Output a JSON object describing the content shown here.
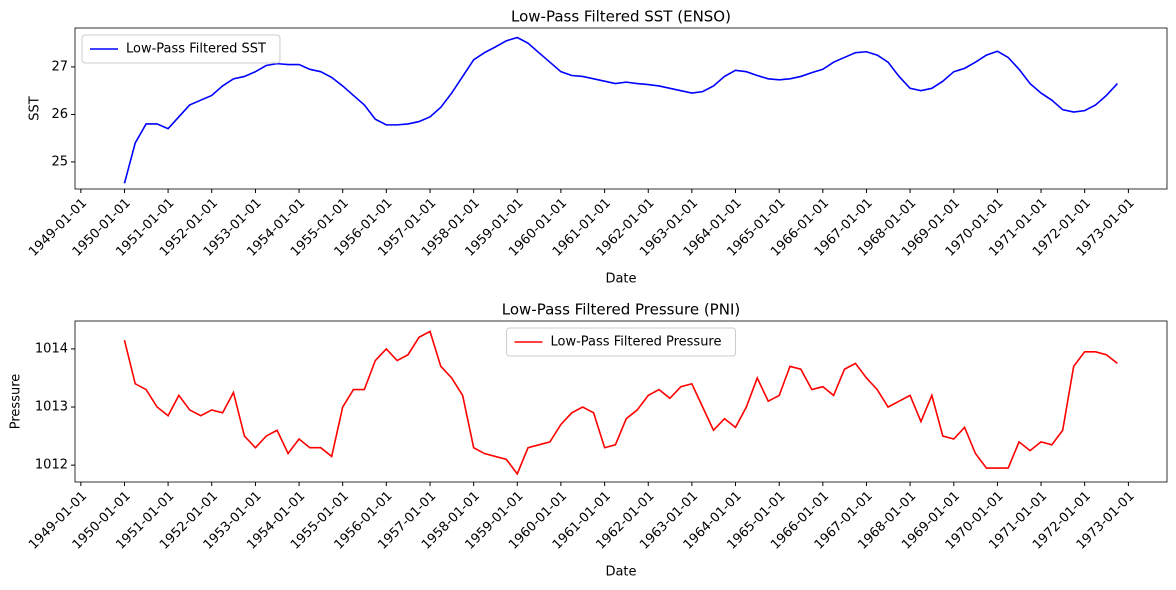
{
  "chart_data": [
    {
      "type": "line",
      "title": "Low-Pass Filtered SST (ENSO)",
      "x_label": "Date",
      "y_label": "SST",
      "x": [
        "1950-01-01",
        "1950-04-01",
        "1950-07-01",
        "1950-10-01",
        "1951-01-01",
        "1951-04-01",
        "1951-07-01",
        "1951-10-01",
        "1952-01-01",
        "1952-04-01",
        "1952-07-01",
        "1952-10-01",
        "1953-01-01",
        "1953-04-01",
        "1953-07-01",
        "1953-10-01",
        "1954-01-01",
        "1954-04-01",
        "1954-07-01",
        "1954-10-01",
        "1955-01-01",
        "1955-04-01",
        "1955-07-01",
        "1955-10-01",
        "1956-01-01",
        "1956-04-01",
        "1956-07-01",
        "1956-10-01",
        "1957-01-01",
        "1957-04-01",
        "1957-07-01",
        "1957-10-01",
        "1958-01-01",
        "1958-04-01",
        "1958-07-01",
        "1958-10-01",
        "1959-01-01",
        "1959-04-01",
        "1959-07-01",
        "1959-10-01",
        "1960-01-01",
        "1960-04-01",
        "1960-07-01",
        "1960-10-01",
        "1961-01-01",
        "1961-04-01",
        "1961-07-01",
        "1961-10-01",
        "1962-01-01",
        "1962-04-01",
        "1962-07-01",
        "1962-10-01",
        "1963-01-01",
        "1963-04-01",
        "1963-07-01",
        "1963-10-01",
        "1964-01-01",
        "1964-04-01",
        "1964-07-01",
        "1964-10-01",
        "1965-01-01",
        "1965-04-01",
        "1965-07-01",
        "1965-10-01",
        "1966-01-01",
        "1966-04-01",
        "1966-07-01",
        "1966-10-01",
        "1967-01-01",
        "1967-04-01",
        "1967-07-01",
        "1967-10-01",
        "1968-01-01",
        "1968-04-01",
        "1968-07-01",
        "1968-10-01",
        "1969-01-01",
        "1969-04-01",
        "1969-07-01",
        "1969-10-01",
        "1970-01-01",
        "1970-04-01",
        "1970-07-01",
        "1970-10-01",
        "1971-01-01",
        "1971-04-01",
        "1971-07-01",
        "1971-10-01",
        "1972-01-01",
        "1972-04-01",
        "1972-07-01",
        "1972-10-01"
      ],
      "series": [
        {
          "name": "Low-Pass Filtered SST",
          "color": "#0000ff",
          "values": [
            24.55,
            25.4,
            25.8,
            25.8,
            25.7,
            25.95,
            26.2,
            26.3,
            26.4,
            26.6,
            26.75,
            26.8,
            26.9,
            27.03,
            27.07,
            27.05,
            27.05,
            26.95,
            26.9,
            26.78,
            26.6,
            26.4,
            26.2,
            25.9,
            25.78,
            25.78,
            25.8,
            25.85,
            25.95,
            26.15,
            26.45,
            26.8,
            27.15,
            27.3,
            27.42,
            27.55,
            27.62,
            27.5,
            27.3,
            27.1,
            26.9,
            26.82,
            26.8,
            26.75,
            26.7,
            26.65,
            26.68,
            26.65,
            26.63,
            26.6,
            26.55,
            26.5,
            26.45,
            26.48,
            26.6,
            26.8,
            26.93,
            26.9,
            26.82,
            26.75,
            26.73,
            26.75,
            26.8,
            26.88,
            26.95,
            27.1,
            27.2,
            27.3,
            27.32,
            27.25,
            27.1,
            26.8,
            26.55,
            26.5,
            26.55,
            26.7,
            26.9,
            26.97,
            27.1,
            27.25,
            27.33,
            27.2,
            26.95,
            26.65,
            26.45,
            26.3,
            26.1,
            26.05,
            26.08,
            26.2,
            26.4,
            26.65
          ]
        }
      ],
      "xlim": [
        "1948-11-13",
        "1973-11-20"
      ],
      "xticks": [
        "1949-01-01",
        "1950-01-01",
        "1951-01-01",
        "1952-01-01",
        "1953-01-01",
        "1954-01-01",
        "1955-01-01",
        "1956-01-01",
        "1957-01-01",
        "1958-01-01",
        "1959-01-01",
        "1960-01-01",
        "1961-01-01",
        "1962-01-01",
        "1963-01-01",
        "1964-01-01",
        "1965-01-01",
        "1966-01-01",
        "1967-01-01",
        "1968-01-01",
        "1969-01-01",
        "1970-01-01",
        "1971-01-01",
        "1972-01-01",
        "1973-01-01"
      ],
      "ylim": [
        24.43,
        27.82
      ],
      "yticks": [
        25,
        26,
        27
      ],
      "legend": "upper left"
    },
    {
      "type": "line",
      "title": "Low-Pass Filtered Pressure (PNI)",
      "x_label": "Date",
      "y_label": "Pressure",
      "x": [
        "1950-01-01",
        "1950-04-01",
        "1950-07-01",
        "1950-10-01",
        "1951-01-01",
        "1951-04-01",
        "1951-07-01",
        "1951-10-01",
        "1952-01-01",
        "1952-04-01",
        "1952-07-01",
        "1952-10-01",
        "1953-01-01",
        "1953-04-01",
        "1953-07-01",
        "1953-10-01",
        "1954-01-01",
        "1954-04-01",
        "1954-07-01",
        "1954-10-01",
        "1955-01-01",
        "1955-04-01",
        "1955-07-01",
        "1955-10-01",
        "1956-01-01",
        "1956-04-01",
        "1956-07-01",
        "1956-10-01",
        "1957-01-01",
        "1957-04-01",
        "1957-07-01",
        "1957-10-01",
        "1958-01-01",
        "1958-04-01",
        "1958-07-01",
        "1958-10-01",
        "1959-01-01",
        "1959-04-01",
        "1959-07-01",
        "1959-10-01",
        "1960-01-01",
        "1960-04-01",
        "1960-07-01",
        "1960-10-01",
        "1961-01-01",
        "1961-04-01",
        "1961-07-01",
        "1961-10-01",
        "1962-01-01",
        "1962-04-01",
        "1962-07-01",
        "1962-10-01",
        "1963-01-01",
        "1963-04-01",
        "1963-07-01",
        "1963-10-01",
        "1964-01-01",
        "1964-04-01",
        "1964-07-01",
        "1964-10-01",
        "1965-01-01",
        "1965-04-01",
        "1965-07-01",
        "1965-10-01",
        "1966-01-01",
        "1966-04-01",
        "1966-07-01",
        "1966-10-01",
        "1967-01-01",
        "1967-04-01",
        "1967-07-01",
        "1967-10-01",
        "1968-01-01",
        "1968-04-01",
        "1968-07-01",
        "1968-10-01",
        "1969-01-01",
        "1969-04-01",
        "1969-07-01",
        "1969-10-01",
        "1970-01-01",
        "1970-04-01",
        "1970-07-01",
        "1970-10-01",
        "1971-01-01",
        "1971-04-01",
        "1971-07-01",
        "1971-10-01",
        "1972-01-01",
        "1972-04-01",
        "1972-07-01",
        "1972-10-01"
      ],
      "series": [
        {
          "name": "Low-Pass Filtered Pressure",
          "color": "#ff0000",
          "values": [
            1014.15,
            1013.4,
            1013.3,
            1013.0,
            1012.85,
            1013.2,
            1012.95,
            1012.85,
            1012.95,
            1012.9,
            1013.25,
            1012.5,
            1012.3,
            1012.5,
            1012.6,
            1012.2,
            1012.45,
            1012.3,
            1012.3,
            1012.15,
            1013.0,
            1013.3,
            1013.3,
            1013.8,
            1014.0,
            1013.8,
            1013.9,
            1014.2,
            1014.3,
            1013.7,
            1013.5,
            1013.2,
            1012.3,
            1012.2,
            1012.15,
            1012.1,
            1011.85,
            1012.3,
            1012.35,
            1012.4,
            1012.7,
            1012.9,
            1013.0,
            1012.9,
            1012.3,
            1012.35,
            1012.8,
            1012.95,
            1013.2,
            1013.3,
            1013.15,
            1013.35,
            1013.4,
            1013.0,
            1012.6,
            1012.8,
            1012.65,
            1013.0,
            1013.5,
            1013.1,
            1013.2,
            1013.7,
            1013.65,
            1013.3,
            1013.35,
            1013.2,
            1013.65,
            1013.75,
            1013.5,
            1013.3,
            1013.0,
            1013.1,
            1013.2,
            1012.75,
            1013.2,
            1012.5,
            1012.45,
            1012.65,
            1012.2,
            1011.95,
            1011.95,
            1011.95,
            1012.4,
            1012.25,
            1012.4,
            1012.35,
            1012.6,
            1013.7,
            1013.95,
            1013.95,
            1013.9,
            1013.75
          ]
        }
      ],
      "xlim": [
        "1948-11-13",
        "1973-11-20"
      ],
      "xticks": [
        "1949-01-01",
        "1950-01-01",
        "1951-01-01",
        "1952-01-01",
        "1953-01-01",
        "1954-01-01",
        "1955-01-01",
        "1956-01-01",
        "1957-01-01",
        "1958-01-01",
        "1959-01-01",
        "1960-01-01",
        "1961-01-01",
        "1962-01-01",
        "1963-01-01",
        "1964-01-01",
        "1965-01-01",
        "1966-01-01",
        "1967-01-01",
        "1968-01-01",
        "1969-01-01",
        "1970-01-01",
        "1971-01-01",
        "1972-01-01",
        "1973-01-01"
      ],
      "ylim": [
        1011.71,
        1014.48
      ],
      "yticks": [
        1012,
        1013,
        1014
      ],
      "legend": "upper center"
    }
  ]
}
